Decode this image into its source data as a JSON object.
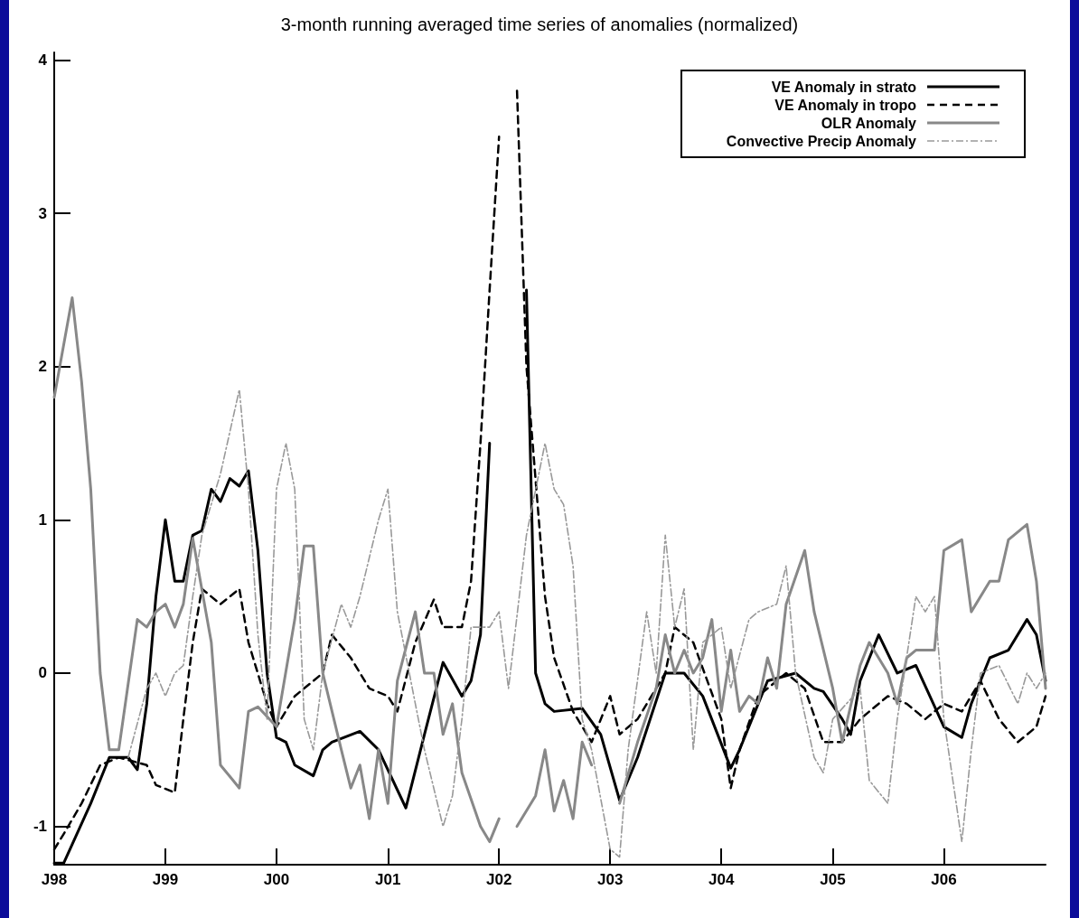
{
  "chart_data": {
    "type": "line",
    "title": "3-month running averaged time series of anomalies (normalized)",
    "xlim": [
      "1998-01",
      "2006-12"
    ],
    "ylim": [
      -1.25,
      4.05
    ],
    "xticks": [
      {
        "value": "1998-01",
        "label": "J98"
      },
      {
        "value": "1999-01",
        "label": "J99"
      },
      {
        "value": "2000-01",
        "label": "J00"
      },
      {
        "value": "2001-01",
        "label": "J01"
      },
      {
        "value": "2002-01",
        "label": "J02"
      },
      {
        "value": "2003-01",
        "label": "J03"
      },
      {
        "value": "2004-01",
        "label": "J04"
      },
      {
        "value": "2005-01",
        "label": "J05"
      },
      {
        "value": "2006-01",
        "label": "J06"
      }
    ],
    "yticks": [
      -1,
      0,
      1,
      2,
      3,
      4
    ],
    "grid": false,
    "legend": "top right",
    "marker": "none",
    "series": [
      {
        "name": "VE Anomaly in strato",
        "color": "#000000",
        "line_style": "solid",
        "x": [
          "1998-01",
          "1998-02",
          "1998-05",
          "1998-07",
          "1998-09",
          "1998-10",
          "1998-11",
          "1998-12",
          "1999-01",
          "1999-02",
          "1999-03",
          "1999-04",
          "1999-05",
          "1999-06",
          "1999-07",
          "1999-08",
          "1999-09",
          "1999-10",
          "1999-11",
          "1999-12",
          "2000-01",
          "2000-02",
          "2000-03",
          "2000-05",
          "2000-06",
          "2000-07",
          "2000-10",
          "2000-12",
          "2001-03",
          "2001-05",
          "2001-07",
          "2001-09",
          "2001-10",
          "2001-11",
          "2001-12",
          "2002-03",
          "2002-04",
          "2002-05",
          "2002-06",
          "2002-07",
          "2002-10",
          "2002-12",
          "2003-02",
          "2003-04",
          "2003-07",
          "2003-09",
          "2003-11",
          "2004-02",
          "2004-03",
          "2004-06",
          "2004-09",
          "2004-11",
          "2004-12",
          "2005-02",
          "2005-03",
          "2005-04",
          "2005-06",
          "2005-08",
          "2005-10",
          "2006-01",
          "2006-03",
          "2006-04",
          "2006-06",
          "2006-08",
          "2006-10",
          "2006-11",
          "2006-12"
        ],
        "values": [
          -1.24,
          -1.24,
          -0.85,
          -0.55,
          -0.55,
          -0.63,
          -0.2,
          0.5,
          1.0,
          0.6,
          0.6,
          0.9,
          0.93,
          1.2,
          1.12,
          1.27,
          1.22,
          1.32,
          0.8,
          0.0,
          -0.42,
          -0.45,
          -0.6,
          -0.67,
          -0.5,
          -0.45,
          -0.38,
          -0.5,
          -0.88,
          -0.4,
          0.07,
          -0.15,
          -0.05,
          0.25,
          1.5,
          null,
          2.5,
          0.0,
          -0.2,
          -0.25,
          -0.23,
          -0.4,
          -0.83,
          -0.55,
          0.0,
          0.0,
          -0.15,
          -0.62,
          -0.5,
          -0.05,
          0.0,
          -0.1,
          -0.12,
          -0.3,
          -0.4,
          -0.05,
          0.25,
          0.0,
          0.05,
          -0.35,
          -0.42,
          -0.2,
          0.1,
          0.15,
          0.35,
          0.25,
          -0.05
        ]
      },
      {
        "name": "VE Anomaly in tropo",
        "color": "#000000",
        "line_style": "dashed",
        "x": [
          "1998-01",
          "1998-02",
          "1998-04",
          "1998-06",
          "1998-08",
          "1998-11",
          "1998-12",
          "1999-02",
          "1999-03",
          "1999-04",
          "1999-05",
          "1999-07",
          "1999-09",
          "1999-10",
          "1999-12",
          "2000-01",
          "2000-03",
          "2000-06",
          "2000-07",
          "2000-09",
          "2000-11",
          "2001-01",
          "2001-02",
          "2001-04",
          "2001-06",
          "2001-07",
          "2001-09",
          "2001-10",
          "2001-11",
          "2001-12",
          "2002-01",
          "2002-02",
          "2002-03",
          "2002-04",
          "2002-06",
          "2002-07",
          "2002-09",
          "2002-11",
          "2003-01",
          "2003-02",
          "2003-04",
          "2003-07",
          "2003-08",
          "2003-10",
          "2004-01",
          "2004-02",
          "2004-03",
          "2004-05",
          "2004-08",
          "2004-10",
          "2004-12",
          "2005-02",
          "2005-04",
          "2005-07",
          "2005-09",
          "2005-11",
          "2006-01",
          "2006-03",
          "2006-05",
          "2006-07",
          "2006-09",
          "2006-11",
          "2006-12"
        ],
        "values": [
          -1.15,
          -1.05,
          -0.85,
          -0.6,
          -0.55,
          -0.6,
          -0.73,
          -0.78,
          -0.3,
          0.2,
          0.55,
          0.45,
          0.55,
          0.2,
          -0.2,
          -0.35,
          -0.15,
          0.0,
          0.25,
          0.1,
          -0.1,
          -0.15,
          -0.25,
          0.2,
          0.48,
          0.3,
          0.3,
          0.6,
          1.5,
          2.5,
          3.5,
          null,
          3.8,
          2.0,
          0.5,
          0.1,
          -0.25,
          -0.45,
          -0.15,
          -0.4,
          -0.3,
          0.0,
          0.3,
          0.2,
          -0.3,
          -0.75,
          -0.5,
          -0.15,
          0.0,
          -0.1,
          -0.45,
          -0.45,
          -0.3,
          -0.15,
          -0.2,
          -0.3,
          -0.2,
          -0.25,
          -0.05,
          -0.3,
          -0.45,
          -0.35,
          -0.15
        ]
      },
      {
        "name": "OLR Anomaly",
        "color": "#888888",
        "line_style": "solid",
        "x": [
          "1998-01",
          "1998-03",
          "1998-04",
          "1998-05",
          "1998-06",
          "1998-07",
          "1998-08",
          "1998-10",
          "1998-11",
          "1998-12",
          "1999-01",
          "1999-02",
          "1999-03",
          "1999-04",
          "1999-06",
          "1999-07",
          "1999-09",
          "1999-10",
          "1999-11",
          "2000-01",
          "2000-03",
          "2000-04",
          "2000-05",
          "2000-06",
          "2000-08",
          "2000-09",
          "2000-10",
          "2000-11",
          "2000-12",
          "2001-01",
          "2001-02",
          "2001-04",
          "2001-05",
          "2001-06",
          "2001-07",
          "2001-08",
          "2001-09",
          "2001-11",
          "2001-12",
          "2002-01",
          "2002-02",
          "2002-03",
          "2002-05",
          "2002-06",
          "2002-07",
          "2002-08",
          "2002-09",
          "2002-10",
          "2002-11",
          "2003-01",
          "2003-02",
          "2003-04",
          "2003-06",
          "2003-07",
          "2003-08",
          "2003-09",
          "2003-10",
          "2003-11",
          "2003-12",
          "2004-01",
          "2004-02",
          "2004-03",
          "2004-04",
          "2004-05",
          "2004-06",
          "2004-07",
          "2004-08",
          "2004-10",
          "2004-11",
          "2005-01",
          "2005-02",
          "2005-04",
          "2005-05",
          "2005-07",
          "2005-08",
          "2005-09",
          "2005-10",
          "2005-12",
          "2006-01",
          "2006-03",
          "2006-04",
          "2006-06",
          "2006-07",
          "2006-08",
          "2006-10",
          "2006-11",
          "2006-12"
        ],
        "values": [
          1.8,
          2.45,
          1.9,
          1.2,
          0.0,
          -0.5,
          -0.5,
          0.35,
          0.3,
          0.4,
          0.45,
          0.3,
          0.45,
          0.88,
          0.2,
          -0.6,
          -0.75,
          -0.25,
          -0.22,
          -0.35,
          0.35,
          0.83,
          0.83,
          0.0,
          -0.5,
          -0.75,
          -0.6,
          -0.95,
          -0.5,
          -0.85,
          -0.05,
          0.4,
          0.0,
          0.0,
          -0.4,
          -0.2,
          -0.65,
          -1.0,
          -1.1,
          -0.95,
          null,
          -1.0,
          -0.8,
          -0.5,
          -0.9,
          -0.7,
          -0.95,
          -0.45,
          -0.6,
          null,
          -0.85,
          -0.45,
          -0.1,
          0.25,
          0.0,
          0.15,
          0.0,
          0.1,
          0.35,
          -0.25,
          0.15,
          -0.25,
          -0.15,
          -0.2,
          0.1,
          -0.1,
          0.45,
          0.8,
          0.4,
          -0.1,
          -0.45,
          0.05,
          0.2,
          0.0,
          -0.2,
          0.1,
          0.15,
          0.15,
          0.8,
          0.87,
          0.4,
          0.6,
          0.6,
          0.87,
          0.97,
          0.6,
          -0.1
        ]
      },
      {
        "name": "Convective Precip Anomaly",
        "color": "#999999",
        "line_style": "dashdot",
        "x": [
          "1998-09",
          "1998-11",
          "1998-12",
          "1999-01",
          "1999-02",
          "1999-03",
          "1999-04",
          "1999-05",
          "1999-07",
          "1999-09",
          "1999-10",
          "1999-11",
          "1999-12",
          "2000-01",
          "2000-02",
          "2000-03",
          "2000-04",
          "2000-05",
          "2000-06",
          "2000-08",
          "2000-09",
          "2000-10",
          "2000-12",
          "2001-01",
          "2001-02",
          "2001-04",
          "2001-05",
          "2001-07",
          "2001-08",
          "2001-09",
          "2001-10",
          "2001-12",
          "2002-01",
          "2002-02",
          "2002-04",
          "2002-06",
          "2002-07",
          "2002-08",
          "2002-09",
          "2002-10",
          "2002-11",
          "2003-01",
          "2003-02",
          "2003-03",
          "2003-05",
          "2003-06",
          "2003-07",
          "2003-08",
          "2003-09",
          "2003-10",
          "2003-11",
          "2004-01",
          "2004-02",
          "2004-04",
          "2004-05",
          "2004-07",
          "2004-08",
          "2004-09",
          "2004-11",
          "2004-12",
          "2005-01",
          "2005-04",
          "2005-05",
          "2005-07",
          "2005-08",
          "2005-10",
          "2005-11",
          "2005-12",
          "2006-01",
          "2006-03",
          "2006-04",
          "2006-05",
          "2006-07",
          "2006-09",
          "2006-10",
          "2006-11",
          "2006-12"
        ],
        "values": [
          -0.55,
          -0.1,
          0.0,
          -0.15,
          0.0,
          0.05,
          0.5,
          0.9,
          1.3,
          1.85,
          1.2,
          0.25,
          -0.3,
          1.2,
          1.5,
          1.2,
          -0.3,
          -0.5,
          0.0,
          0.45,
          0.3,
          0.5,
          1.0,
          1.2,
          0.4,
          -0.2,
          -0.5,
          -1.0,
          -0.8,
          -0.3,
          0.3,
          0.3,
          0.4,
          -0.1,
          0.9,
          1.5,
          1.2,
          1.1,
          0.7,
          -0.3,
          -0.5,
          -1.15,
          -1.2,
          -0.5,
          0.4,
          0.0,
          0.9,
          0.3,
          0.55,
          -0.5,
          0.2,
          0.3,
          -0.1,
          0.35,
          0.4,
          0.45,
          0.7,
          0.0,
          -0.55,
          -0.65,
          -0.3,
          -0.1,
          -0.7,
          -0.85,
          -0.3,
          0.5,
          0.4,
          0.5,
          -0.3,
          -1.1,
          -0.5,
          0.0,
          0.05,
          -0.2,
          0.0,
          -0.1,
          0.0
        ]
      }
    ]
  }
}
